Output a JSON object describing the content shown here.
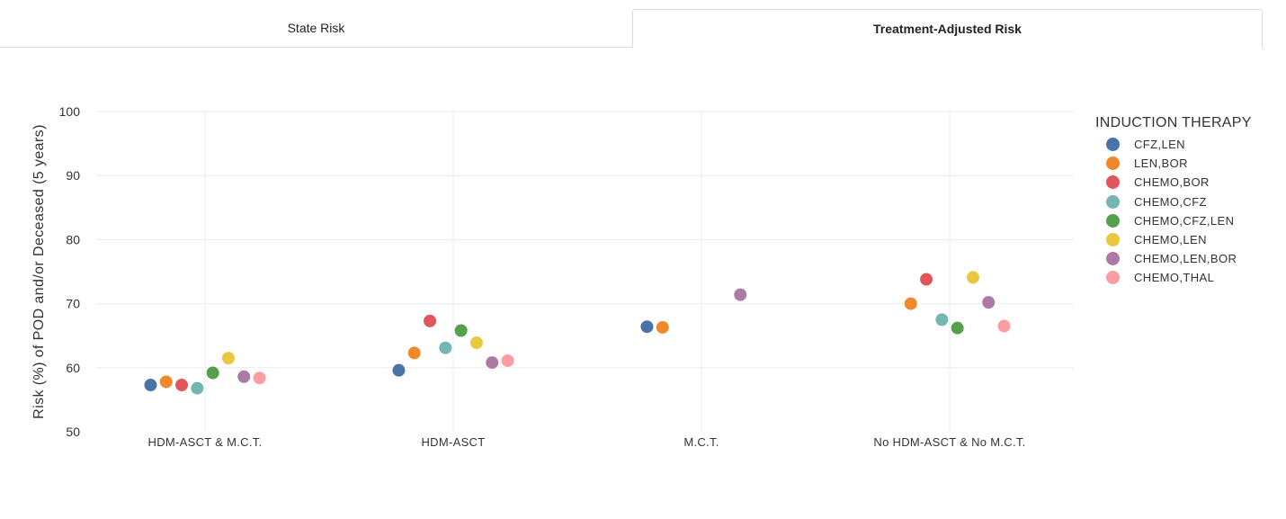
{
  "tabs": {
    "state_risk": "State Risk",
    "treatment_adjusted_risk": "Treatment-Adjusted Risk"
  },
  "legend": {
    "title": "INDUCTION THERAPY"
  },
  "chart_data": {
    "type": "scatter",
    "title": "",
    "xlabel": "",
    "ylabel": "Risk (%) of POD and/or Deceased (5 years)",
    "ylim": [
      50,
      100
    ],
    "yticks": [
      50,
      60,
      70,
      80,
      90,
      100
    ],
    "grid": true,
    "legend_position": "right",
    "categories": [
      "HDM-ASCT & M.C.T.",
      "HDM-ASCT",
      "M.C.T.",
      "No HDM-ASCT & No M.C.T."
    ],
    "series": [
      {
        "name": "CFZ,LEN",
        "color": "#4a73a8",
        "values": [
          57.3,
          59.6,
          66.4,
          null
        ]
      },
      {
        "name": "LEN,BOR",
        "color": "#f0892b",
        "values": [
          57.8,
          62.3,
          66.3,
          70.0
        ]
      },
      {
        "name": "CHEMO,BOR",
        "color": "#e0565b",
        "values": [
          57.3,
          67.3,
          null,
          73.8
        ]
      },
      {
        "name": "CHEMO,CFZ",
        "color": "#74b7b2",
        "values": [
          56.8,
          63.1,
          null,
          67.5
        ]
      },
      {
        "name": "CHEMO,CFZ,LEN",
        "color": "#56a04d",
        "values": [
          59.2,
          65.8,
          null,
          66.2
        ]
      },
      {
        "name": "CHEMO,LEN",
        "color": "#ebc73f",
        "values": [
          61.5,
          63.9,
          null,
          74.1
        ]
      },
      {
        "name": "CHEMO,LEN,BOR",
        "color": "#ad7aa4",
        "values": [
          58.6,
          60.8,
          71.4,
          70.2
        ]
      },
      {
        "name": "CHEMO,THAL",
        "color": "#fc9ca3",
        "values": [
          58.4,
          61.1,
          null,
          66.5
        ]
      }
    ]
  }
}
